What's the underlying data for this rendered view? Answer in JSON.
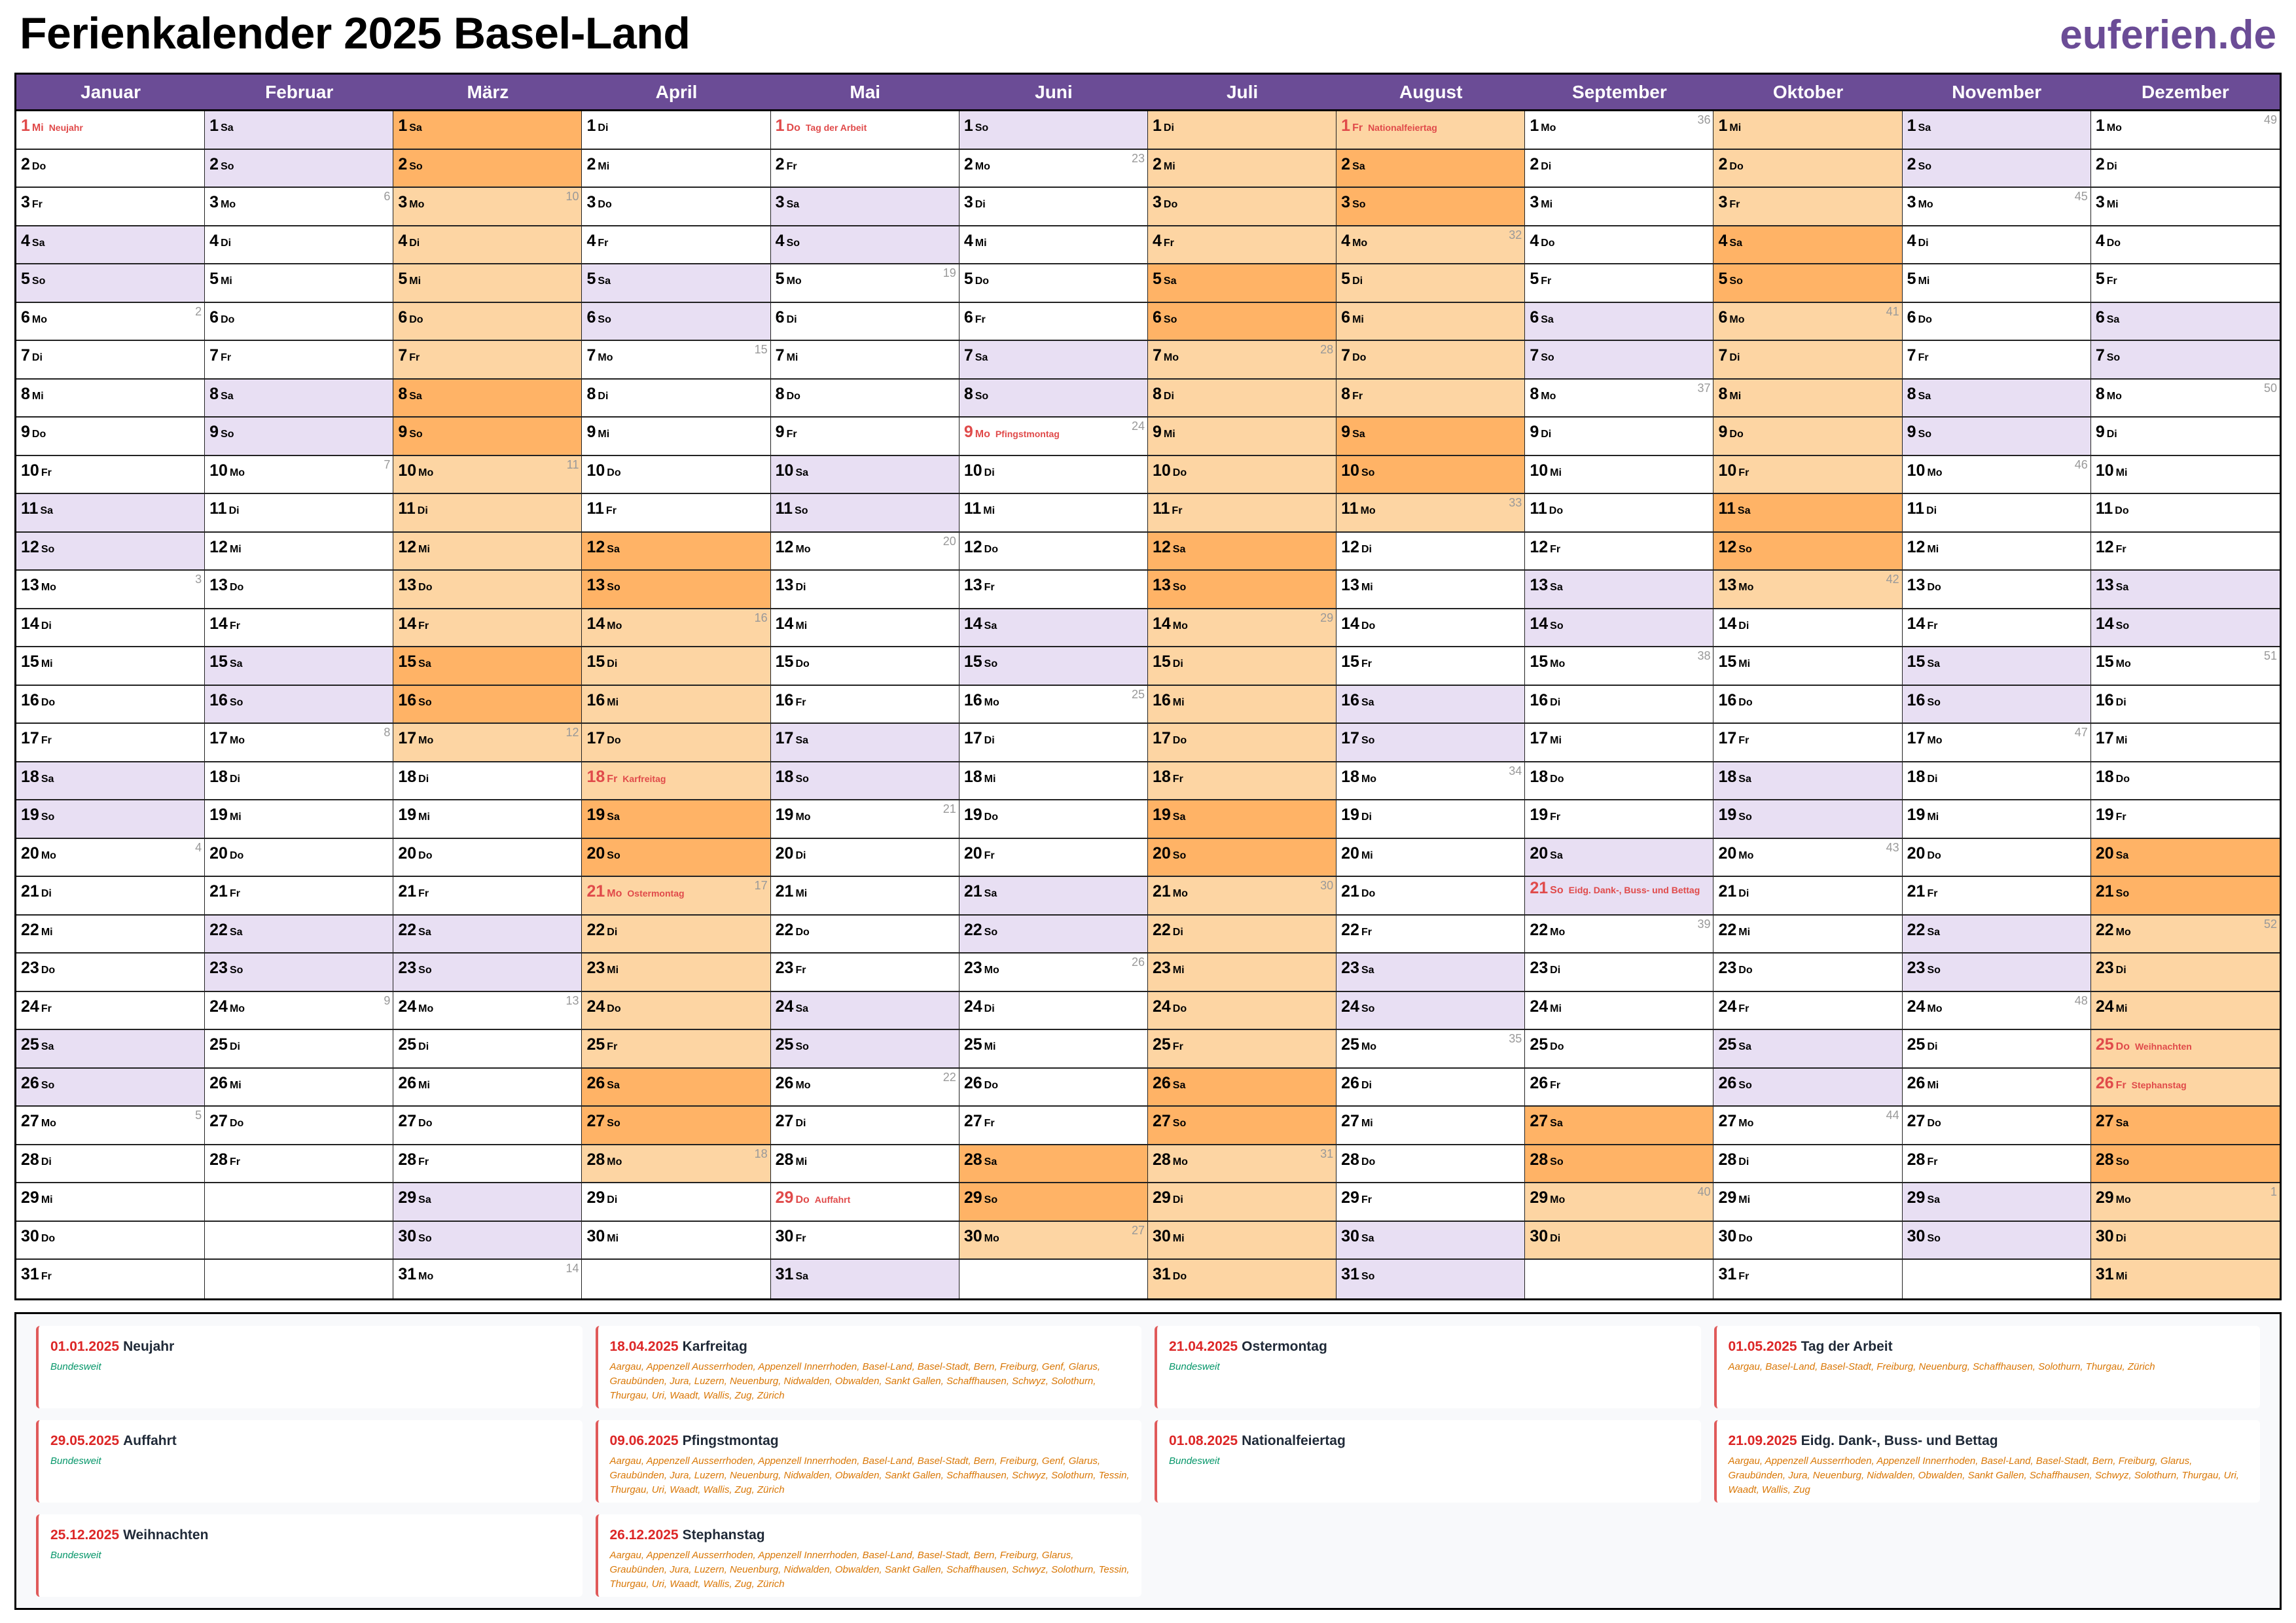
{
  "header": {
    "title": "Ferienkalender 2025 Basel-Land",
    "logo": "euferien.de"
  },
  "colors": {
    "header": "#6b4c96",
    "weekend": "#e8dff3",
    "vacation": "#fdd5a3",
    "vacation_weekend": "#ffb366",
    "holiday_text": "#e04a4a"
  },
  "vacations": [
    [
      "03-01",
      "03-17"
    ],
    [
      "04-12",
      "04-28"
    ],
    [
      "06-28",
      "08-11"
    ],
    [
      "09-27",
      "10-13"
    ],
    [
      "12-20",
      "12-31"
    ]
  ],
  "months": [
    {
      "name": "Januar",
      "weekdays": [
        "Mi",
        "Do",
        "Fr",
        "Sa",
        "So",
        "Mo",
        "Di",
        "Mi",
        "Do",
        "Fr",
        "Sa",
        "So",
        "Mo",
        "Di",
        "Mi",
        "Do",
        "Fr",
        "Sa",
        "So",
        "Mo",
        "Di",
        "Mi",
        "Do",
        "Fr",
        "Sa",
        "So",
        "Mo",
        "Di",
        "Mi",
        "Do",
        "Fr"
      ],
      "kw": {
        "6": "2",
        "13": "3",
        "20": "4",
        "27": "5"
      },
      "holidays": {
        "1": "Neujahr"
      }
    },
    {
      "name": "Februar",
      "weekdays": [
        "Sa",
        "So",
        "Mo",
        "Di",
        "Mi",
        "Do",
        "Fr",
        "Sa",
        "So",
        "Mo",
        "Di",
        "Mi",
        "Do",
        "Fr",
        "Sa",
        "So",
        "Mo",
        "Di",
        "Mi",
        "Do",
        "Fr",
        "Sa",
        "So",
        "Mo",
        "Di",
        "Mi",
        "Do",
        "Fr"
      ],
      "kw": {
        "3": "6",
        "10": "7",
        "17": "8",
        "24": "9"
      },
      "holidays": {}
    },
    {
      "name": "März",
      "weekdays": [
        "Sa",
        "So",
        "Mo",
        "Di",
        "Mi",
        "Do",
        "Fr",
        "Sa",
        "So",
        "Mo",
        "Di",
        "Mi",
        "Do",
        "Fr",
        "Sa",
        "So",
        "Mo",
        "Di",
        "Mi",
        "Do",
        "Fr",
        "Sa",
        "So",
        "Mo",
        "Di",
        "Mi",
        "Do",
        "Fr",
        "Sa",
        "So",
        "Mo"
      ],
      "kw": {
        "3": "10",
        "10": "11",
        "17": "12",
        "24": "13",
        "31": "14"
      },
      "holidays": {}
    },
    {
      "name": "April",
      "weekdays": [
        "Di",
        "Mi",
        "Do",
        "Fr",
        "Sa",
        "So",
        "Mo",
        "Di",
        "Mi",
        "Do",
        "Fr",
        "Sa",
        "So",
        "Mo",
        "Di",
        "Mi",
        "Do",
        "Fr",
        "Sa",
        "So",
        "Mo",
        "Di",
        "Mi",
        "Do",
        "Fr",
        "Sa",
        "So",
        "Mo",
        "Di",
        "Mi"
      ],
      "kw": {
        "7": "15",
        "14": "16",
        "21": "17",
        "28": "18"
      },
      "holidays": {
        "18": "Karfreitag",
        "21": "Ostermontag"
      }
    },
    {
      "name": "Mai",
      "weekdays": [
        "Do",
        "Fr",
        "Sa",
        "So",
        "Mo",
        "Di",
        "Mi",
        "Do",
        "Fr",
        "Sa",
        "So",
        "Mo",
        "Di",
        "Mi",
        "Do",
        "Fr",
        "Sa",
        "So",
        "Mo",
        "Di",
        "Mi",
        "Do",
        "Fr",
        "Sa",
        "So",
        "Mo",
        "Di",
        "Mi",
        "Do",
        "Fr",
        "Sa"
      ],
      "kw": {
        "5": "19",
        "12": "20",
        "19": "21",
        "26": "22"
      },
      "holidays": {
        "1": "Tag der Arbeit",
        "29": "Auffahrt"
      }
    },
    {
      "name": "Juni",
      "weekdays": [
        "So",
        "Mo",
        "Di",
        "Mi",
        "Do",
        "Fr",
        "Sa",
        "So",
        "Mo",
        "Di",
        "Mi",
        "Do",
        "Fr",
        "Sa",
        "So",
        "Mo",
        "Di",
        "Mi",
        "Do",
        "Fr",
        "Sa",
        "So",
        "Mo",
        "Di",
        "Mi",
        "Do",
        "Fr",
        "Sa",
        "So",
        "Mo"
      ],
      "kw": {
        "2": "23",
        "9": "24",
        "16": "25",
        "23": "26",
        "30": "27"
      },
      "holidays": {
        "9": "Pfingstmontag"
      }
    },
    {
      "name": "Juli",
      "weekdays": [
        "Di",
        "Mi",
        "Do",
        "Fr",
        "Sa",
        "So",
        "Mo",
        "Di",
        "Mi",
        "Do",
        "Fr",
        "Sa",
        "So",
        "Mo",
        "Di",
        "Mi",
        "Do",
        "Fr",
        "Sa",
        "So",
        "Mo",
        "Di",
        "Mi",
        "Do",
        "Fr",
        "Sa",
        "So",
        "Mo",
        "Di",
        "Mi",
        "Do"
      ],
      "kw": {
        "7": "28",
        "14": "29",
        "21": "30",
        "28": "31"
      },
      "holidays": {}
    },
    {
      "name": "August",
      "weekdays": [
        "Fr",
        "Sa",
        "So",
        "Mo",
        "Di",
        "Mi",
        "Do",
        "Fr",
        "Sa",
        "So",
        "Mo",
        "Di",
        "Mi",
        "Do",
        "Fr",
        "Sa",
        "So",
        "Mo",
        "Di",
        "Mi",
        "Do",
        "Fr",
        "Sa",
        "So",
        "Mo",
        "Di",
        "Mi",
        "Do",
        "Fr",
        "Sa",
        "So"
      ],
      "kw": {
        "4": "32",
        "11": "33",
        "18": "34",
        "25": "35"
      },
      "holidays": {
        "1": "Nationalfeiertag"
      }
    },
    {
      "name": "September",
      "weekdays": [
        "Mo",
        "Di",
        "Mi",
        "Do",
        "Fr",
        "Sa",
        "So",
        "Mo",
        "Di",
        "Mi",
        "Do",
        "Fr",
        "Sa",
        "So",
        "Mo",
        "Di",
        "Mi",
        "Do",
        "Fr",
        "Sa",
        "So",
        "Mo",
        "Di",
        "Mi",
        "Do",
        "Fr",
        "Sa",
        "So",
        "Mo",
        "Di"
      ],
      "kw": {
        "1": "36",
        "8": "37",
        "15": "38",
        "22": "39",
        "29": "40"
      },
      "holidays": {
        "21": "Eidg. Dank-, Buss- und Bettag"
      }
    },
    {
      "name": "Oktober",
      "weekdays": [
        "Mi",
        "Do",
        "Fr",
        "Sa",
        "So",
        "Mo",
        "Di",
        "Mi",
        "Do",
        "Fr",
        "Sa",
        "So",
        "Mo",
        "Di",
        "Mi",
        "Do",
        "Fr",
        "Sa",
        "So",
        "Mo",
        "Di",
        "Mi",
        "Do",
        "Fr",
        "Sa",
        "So",
        "Mo",
        "Di",
        "Mi",
        "Do",
        "Fr"
      ],
      "kw": {
        "6": "41",
        "13": "42",
        "20": "43",
        "27": "44"
      },
      "holidays": {}
    },
    {
      "name": "November",
      "weekdays": [
        "Sa",
        "So",
        "Mo",
        "Di",
        "Mi",
        "Do",
        "Fr",
        "Sa",
        "So",
        "Mo",
        "Di",
        "Mi",
        "Do",
        "Fr",
        "Sa",
        "So",
        "Mo",
        "Di",
        "Mi",
        "Do",
        "Fr",
        "Sa",
        "So",
        "Mo",
        "Di",
        "Mi",
        "Do",
        "Fr",
        "Sa",
        "So"
      ],
      "kw": {
        "3": "45",
        "10": "46",
        "17": "47",
        "24": "48"
      },
      "holidays": {}
    },
    {
      "name": "Dezember",
      "weekdays": [
        "Mo",
        "Di",
        "Mi",
        "Do",
        "Fr",
        "Sa",
        "So",
        "Mo",
        "Di",
        "Mi",
        "Do",
        "Fr",
        "Sa",
        "So",
        "Mo",
        "Di",
        "Mi",
        "Do",
        "Fr",
        "Sa",
        "So",
        "Mo",
        "Di",
        "Mi",
        "Do",
        "Fr",
        "Sa",
        "So",
        "Mo",
        "Di",
        "Mi"
      ],
      "kw": {
        "1": "49",
        "8": "50",
        "15": "51",
        "22": "52",
        "29": "1"
      },
      "holidays": {
        "25": "Weihnachten",
        "26": "Stephanstag"
      }
    }
  ],
  "legend": [
    {
      "date": "01.01.2025",
      "name": "Neujahr",
      "scope": "Bundesweit",
      "national": true
    },
    {
      "date": "18.04.2025",
      "name": "Karfreitag",
      "scope": "Aargau, Appenzell Ausserrhoden, Appenzell Innerrhoden, Basel-Land, Basel-Stadt, Bern, Freiburg, Genf, Glarus, Graubünden, Jura, Luzern, Neuenburg, Nidwalden, Obwalden, Sankt Gallen, Schaffhausen, Schwyz, Solothurn, Thurgau, Uri, Waadt, Wallis, Zug, Zürich",
      "national": false
    },
    {
      "date": "21.04.2025",
      "name": "Ostermontag",
      "scope": "Bundesweit",
      "national": true
    },
    {
      "date": "01.05.2025",
      "name": "Tag der Arbeit",
      "scope": "Aargau, Basel-Land, Basel-Stadt, Freiburg, Neuenburg, Schaffhausen, Solothurn, Thurgau, Zürich",
      "national": false
    },
    {
      "date": "29.05.2025",
      "name": "Auffahrt",
      "scope": "Bundesweit",
      "national": true
    },
    {
      "date": "09.06.2025",
      "name": "Pfingstmontag",
      "scope": "Aargau, Appenzell Ausserrhoden, Appenzell Innerrhoden, Basel-Land, Basel-Stadt, Bern, Freiburg, Genf, Glarus, Graubünden, Jura, Luzern, Neuenburg, Nidwalden, Obwalden, Sankt Gallen, Schaffhausen, Schwyz, Solothurn, Tessin, Thurgau, Uri, Waadt, Wallis, Zug, Zürich",
      "national": false
    },
    {
      "date": "01.08.2025",
      "name": "Nationalfeiertag",
      "scope": "Bundesweit",
      "national": true
    },
    {
      "date": "21.09.2025",
      "name": "Eidg. Dank-, Buss- und Bettag",
      "scope": "Aargau, Appenzell Ausserrhoden, Appenzell Innerrhoden, Basel-Land, Basel-Stadt, Bern, Freiburg, Glarus, Graubünden, Jura, Neuenburg, Nidwalden, Obwalden, Sankt Gallen, Schaffhausen, Schwyz, Solothurn, Thurgau, Uri, Waadt, Wallis, Zug",
      "national": false
    },
    {
      "date": "25.12.2025",
      "name": "Weihnachten",
      "scope": "Bundesweit",
      "national": true
    },
    {
      "date": "26.12.2025",
      "name": "Stephanstag",
      "scope": "Aargau, Appenzell Ausserrhoden, Appenzell Innerrhoden, Basel-Land, Basel-Stadt, Bern, Freiburg, Glarus, Graubünden, Jura, Luzern, Neuenburg, Nidwalden, Obwalden, Sankt Gallen, Schaffhausen, Schwyz, Solothurn, Tessin, Thurgau, Uri, Waadt, Wallis, Zug, Zürich",
      "national": false
    }
  ]
}
